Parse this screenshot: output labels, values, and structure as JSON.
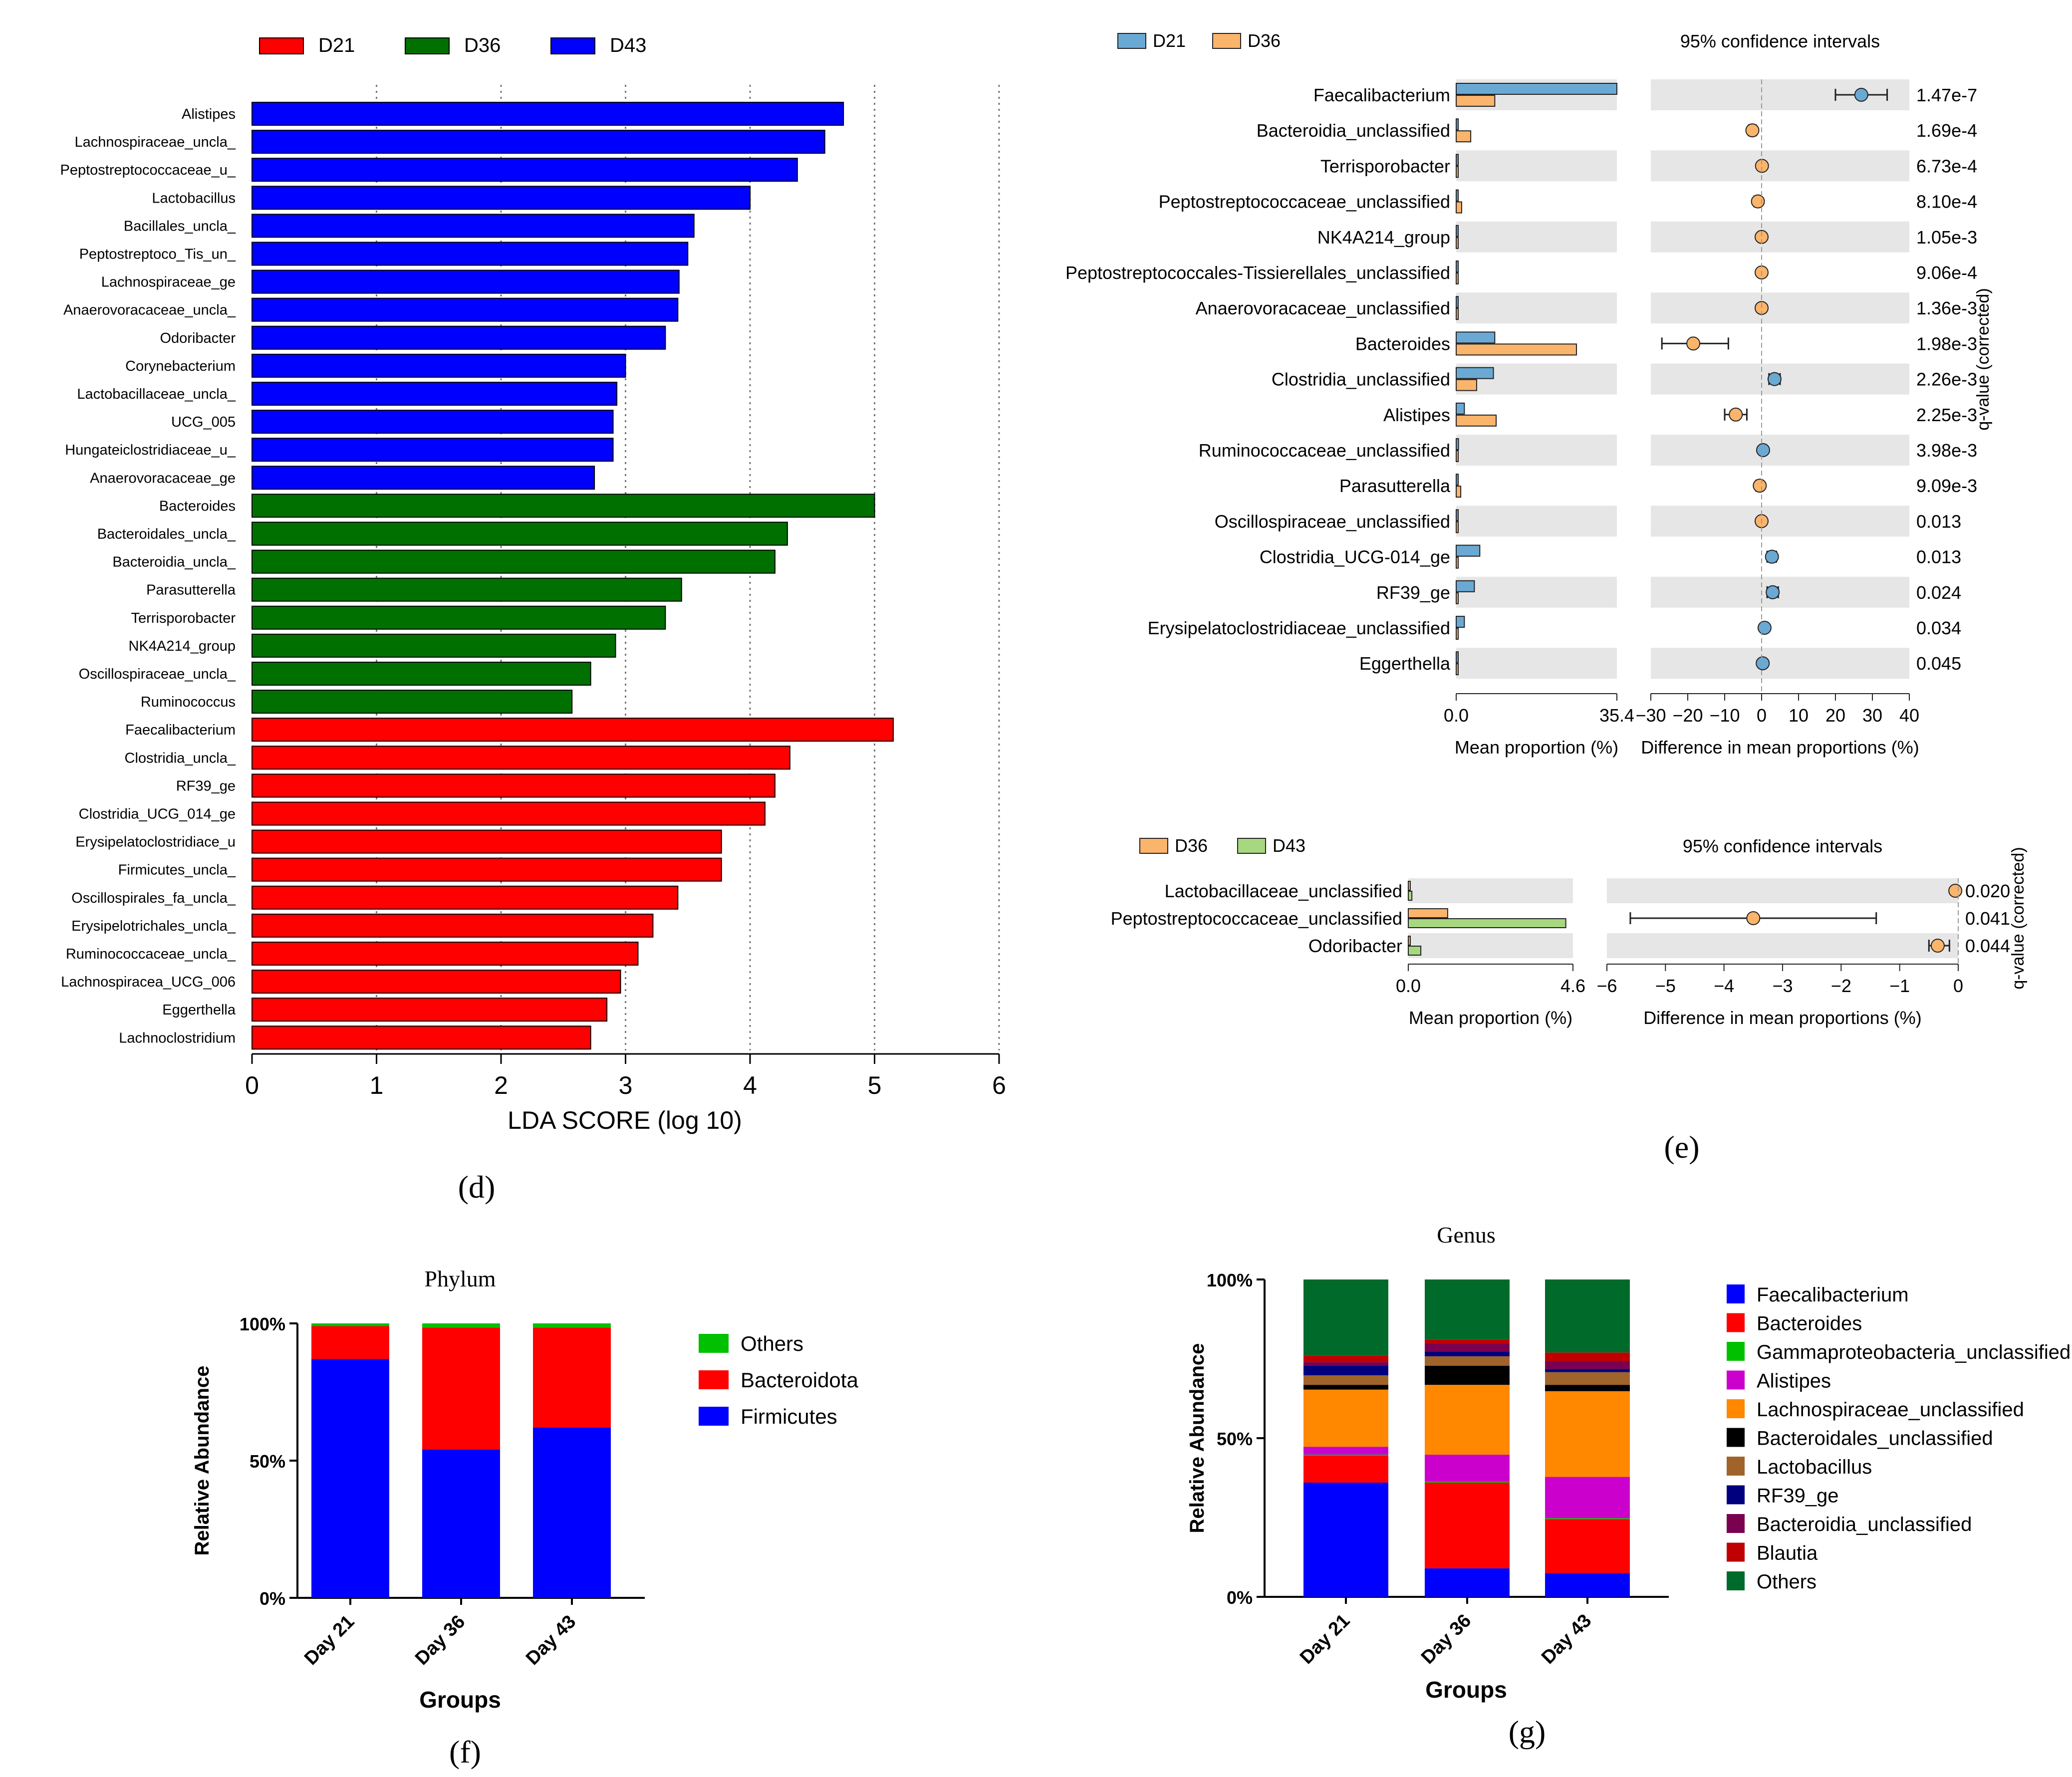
{
  "colors": {
    "red": "#ff0000",
    "green": "#007000",
    "blue": "#0000ff",
    "d21_blue": "#6aa9d4",
    "d36_orange": "#fbb46b",
    "d43_green": "#a7d77f",
    "stripe": "#e6e6e6",
    "black": "#000000",
    "phylum_others": "#00c000",
    "genus_colors": [
      "#0000ff",
      "#ff0000",
      "#00c000",
      "#cc00cc",
      "#ff8800",
      "#000000",
      "#a0642a",
      "#00007f",
      "#7a0050",
      "#c00000",
      "#006a2a"
    ]
  },
  "chart_data": [
    {
      "id": "d",
      "type": "bar",
      "orientation": "horizontal",
      "panel_label": "(d)",
      "xlabel": "LDA SCORE (log 10)",
      "xlim": [
        0,
        6
      ],
      "xticks": [
        "0",
        "1",
        "2",
        "3",
        "4",
        "5",
        "6"
      ],
      "legend": [
        {
          "name": "D21",
          "color": "#ff0000"
        },
        {
          "name": "D36",
          "color": "#007000"
        },
        {
          "name": "D43",
          "color": "#0000ff"
        }
      ],
      "categories": [
        "Alistipes",
        "Lachnospiraceae_uncla_",
        "Peptostreptococcaceae_u_",
        "Lactobacillus",
        "Bacillales_uncla_",
        "Peptostreptoco_Tis_un_",
        "Lachnospiraceae_ge",
        "Anaerovoracaceae_uncla_",
        "Odoribacter",
        "Corynebacterium",
        "Lactobacillaceae_uncla_",
        "UCG_005",
        "Hungateiclostridiaceae_u_",
        "Anaerovoracaceae_ge",
        "Bacteroides",
        "Bacteroidales_uncla_",
        "Bacteroidia_uncla_",
        "Parasutterella",
        "Terrisporobacter",
        "NK4A214_group",
        "Oscillospiraceae_uncla_",
        "Ruminococcus",
        "Faecalibacterium",
        "Clostridia_uncla_",
        "RF39_ge",
        "Clostridia_UCG_014_ge",
        "Erysipelatoclostridiace_u",
        "Firmicutes_uncla_",
        "Oscillospirales_fa_uncla_",
        "Erysipelotrichales_uncla_",
        "Ruminococcaceae_uncla_",
        "Lachnospiracea_UCG_006",
        "Eggerthella",
        "Lachnoclostridium"
      ],
      "values": [
        4.75,
        4.6,
        4.38,
        4.0,
        3.55,
        3.5,
        3.43,
        3.42,
        3.32,
        3.0,
        2.93,
        2.9,
        2.9,
        2.75,
        5.0,
        4.3,
        4.2,
        3.45,
        3.32,
        2.92,
        2.72,
        2.57,
        5.15,
        4.32,
        4.2,
        4.12,
        3.77,
        3.77,
        3.42,
        3.22,
        3.1,
        2.96,
        2.85,
        2.72
      ],
      "groups": [
        "D43",
        "D43",
        "D43",
        "D43",
        "D43",
        "D43",
        "D43",
        "D43",
        "D43",
        "D43",
        "D43",
        "D43",
        "D43",
        "D43",
        "D36",
        "D36",
        "D36",
        "D36",
        "D36",
        "D36",
        "D36",
        "D36",
        "D21",
        "D21",
        "D21",
        "D21",
        "D21",
        "D21",
        "D21",
        "D21",
        "D21",
        "D21",
        "D21",
        "D21"
      ]
    },
    {
      "id": "e1",
      "type": "extended_error_bar",
      "panel_label": "(e)",
      "legend": [
        {
          "name": "D21",
          "color": "#6aa9d4"
        },
        {
          "name": "D36",
          "color": "#fbb46b"
        }
      ],
      "ci_title": "95% confidence intervals",
      "xlabel_left": "Mean proportion (%)",
      "xlabel_right": "Difference in mean proportions (%)",
      "ylabel_right": "q-value (corrected)",
      "mean_xlim": [
        0,
        35.4
      ],
      "mean_ticks": [
        "0.0",
        "35.4"
      ],
      "diff_xlim": [
        -30,
        40
      ],
      "diff_ticks": [
        "−30",
        "−20",
        "−10",
        "0",
        "10",
        "20",
        "30",
        "40"
      ],
      "taxa": [
        "Faecalibacterium",
        "Bacteroidia_unclassified",
        "Terrisporobacter",
        "Peptostreptococcaceae_unclassified",
        "NK4A214_group",
        "Peptostreptococcales-Tissierellales_unclassified",
        "Anaerovoracaceae_unclassified",
        "Bacteroides",
        "Clostridia_unclassified",
        "Alistipes",
        "Ruminococcaceae_unclassified",
        "Parasutterella",
        "Oscillospiraceae_unclassified",
        "Clostridia_UCG-014_ge",
        "RF39_ge",
        "Erysipelatoclostridiaceae_unclassified",
        "Eggerthella"
      ],
      "mean_a": [
        35.4,
        0.3,
        0.1,
        0.2,
        0.1,
        0.1,
        0.1,
        8.5,
        8.2,
        1.8,
        0.5,
        0.15,
        0.2,
        5.2,
        4.0,
        1.8,
        0.3
      ],
      "mean_b": [
        8.5,
        3.2,
        0.15,
        1.2,
        0.2,
        0.2,
        0.3,
        26.5,
        4.5,
        8.8,
        0.1,
        1.0,
        0.3,
        0.3,
        0.2,
        0.2,
        0.1
      ],
      "diff": [
        27,
        -2.5,
        0.1,
        -1,
        0,
        0,
        0,
        -18.5,
        3.5,
        -7,
        0.4,
        -0.5,
        0,
        2.8,
        3,
        0.8,
        0.3
      ],
      "ci_low": [
        20,
        -3.5,
        -0.5,
        -2,
        -0.5,
        -0.5,
        -0.5,
        -27,
        2,
        -10,
        0,
        -1.5,
        -0.5,
        1.5,
        1.5,
        0.3,
        0
      ],
      "ci_high": [
        34,
        -1.5,
        0.5,
        -0.3,
        0.5,
        0.5,
        0.5,
        -9,
        5,
        -4,
        0.8,
        0.3,
        0.5,
        4,
        4.5,
        1.2,
        0.6
      ],
      "diff_color": [
        "b",
        "a",
        "a",
        "a",
        "a",
        "a",
        "a",
        "a",
        "b",
        "a",
        "b",
        "a",
        "a",
        "b",
        "b",
        "b",
        "b"
      ],
      "q_values": [
        "1.47e-7",
        "1.69e-4",
        "6.73e-4",
        "8.10e-4",
        "1.05e-3",
        "9.06e-4",
        "1.36e-3",
        "1.98e-3",
        "2.26e-3",
        "2.25e-3",
        "3.98e-3",
        "9.09e-3",
        "0.013",
        "0.013",
        "0.024",
        "0.034",
        "0.045"
      ]
    },
    {
      "id": "e2",
      "type": "extended_error_bar",
      "legend": [
        {
          "name": "D36",
          "color": "#fbb46b"
        },
        {
          "name": "D43",
          "color": "#a7d77f"
        }
      ],
      "ci_title": "95% confidence intervals",
      "xlabel_left": "Mean proportion (%)",
      "xlabel_right": "Difference in mean proportions (%)",
      "ylabel_right": "q-value (corrected)",
      "mean_xlim": [
        0,
        4.6
      ],
      "mean_ticks": [
        "0.0",
        "4.6"
      ],
      "diff_xlim": [
        -6,
        0
      ],
      "diff_ticks": [
        "−6",
        "−5",
        "−4",
        "−3",
        "−2",
        "−1",
        "0"
      ],
      "taxa": [
        "Lactobacillaceae_unclassified",
        "Peptostreptococcaceae_unclassified",
        "Odoribacter"
      ],
      "mean_a": [
        0.05,
        1.1,
        0.02
      ],
      "mean_b": [
        0.1,
        4.4,
        0.35
      ],
      "diff": [
        -0.05,
        -3.5,
        -0.35
      ],
      "ci_low": [
        -0.1,
        -5.6,
        -0.5
      ],
      "ci_high": [
        0,
        -1.4,
        -0.15
      ],
      "diff_color": [
        "b",
        "b",
        "b"
      ],
      "q_values": [
        "0.020",
        "0.041",
        "0.044"
      ]
    },
    {
      "id": "f",
      "type": "stacked_bar",
      "panel_label": "(f)",
      "title": "Phylum",
      "xlabel": "Groups",
      "ylabel": "Relative Abundance",
      "yticks": [
        "0%",
        "50%",
        "100%"
      ],
      "ylim": [
        0,
        100
      ],
      "categories": [
        "Day 21",
        "Day 36",
        "Day 43"
      ],
      "series": [
        {
          "name": "Firmicutes",
          "color": "#0000ff",
          "values": [
            87,
            54,
            62
          ]
        },
        {
          "name": "Bacteroidota",
          "color": "#ff0000",
          "values": [
            12,
            44.5,
            36.5
          ]
        },
        {
          "name": "Others",
          "color": "#00c000",
          "values": [
            1,
            1.5,
            1.5
          ]
        }
      ],
      "legend_order": [
        "Others",
        "Bacteroidota",
        "Firmicutes"
      ]
    },
    {
      "id": "g",
      "type": "stacked_bar",
      "panel_label": "(g)",
      "title": "Genus",
      "xlabel": "Groups",
      "ylabel": "Relative Abundance",
      "yticks": [
        "0%",
        "50%",
        "100%"
      ],
      "ylim": [
        0,
        100
      ],
      "categories": [
        "Day 21",
        "Day 36",
        "Day 43"
      ],
      "series": [
        {
          "name": "Faecalibacterium",
          "color": "#0000ff",
          "values": [
            36,
            9,
            7.5
          ]
        },
        {
          "name": "Bacteroides",
          "color": "#ff0000",
          "values": [
            8.5,
            27,
            17
          ]
        },
        {
          "name": "Gammaproteobacteria_unclassified",
          "color": "#00c000",
          "values": [
            0.3,
            0.3,
            0.3
          ]
        },
        {
          "name": "Alistipes",
          "color": "#cc00cc",
          "values": [
            2.5,
            8.5,
            13
          ]
        },
        {
          "name": "Lachnospiraceae_unclassified",
          "color": "#ff8800",
          "values": [
            18,
            22,
            27
          ]
        },
        {
          "name": "Bacteroidales_unclassified",
          "color": "#000000",
          "values": [
            1.5,
            6,
            2
          ]
        },
        {
          "name": "Lactobacillus",
          "color": "#a0642a",
          "values": [
            3,
            3,
            4
          ]
        },
        {
          "name": "RF39_ge",
          "color": "#00007f",
          "values": [
            3,
            1.5,
            1
          ]
        },
        {
          "name": "Bacteroidia_unclassified",
          "color": "#7a0050",
          "values": [
            1.2,
            2.5,
            2.5
          ]
        },
        {
          "name": "Blautia",
          "color": "#c00000",
          "values": [
            2,
            1.2,
            2.7
          ]
        },
        {
          "name": "Others",
          "color": "#006a2a",
          "values": [
            24,
            19,
            23
          ]
        }
      ]
    }
  ]
}
